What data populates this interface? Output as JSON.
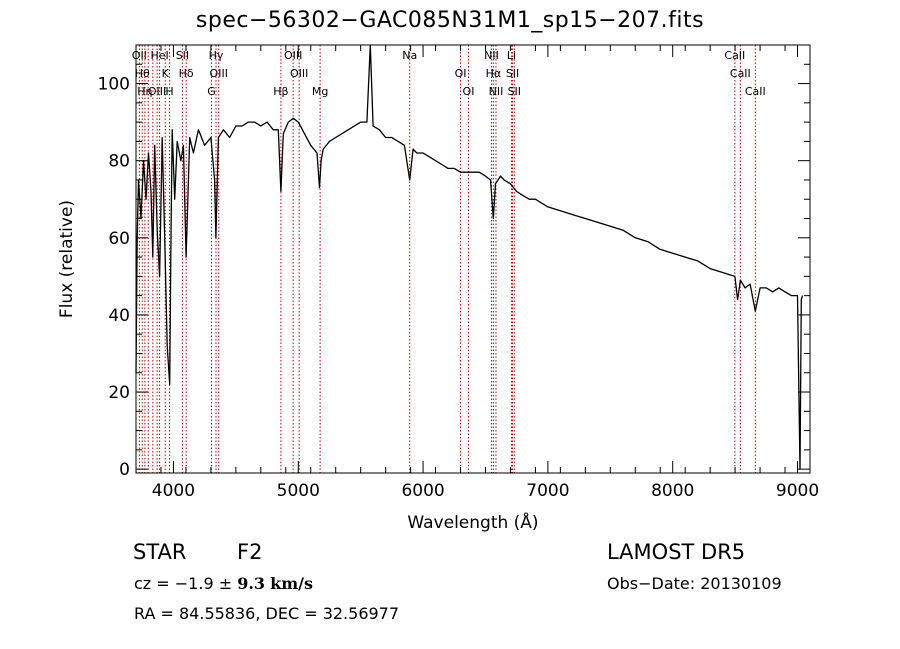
{
  "footer": {
    "class_label": "STAR",
    "subclass": "F2",
    "survey": "LAMOST  DR5",
    "cz_prefix": "cz = −1.9 ±",
    "cz_value": "9.3",
    "cz_unit": "km/s",
    "obs_date": "Obs−Date: 20130109",
    "coords": "RA =  84.55836, DEC =  32.56977"
  },
  "chart_data": {
    "type": "line",
    "title": "spec−56302−GAC085N31M1_sp15−207.fits",
    "xlabel": "Wavelength (Å)",
    "ylabel": "Flux (relative)",
    "xlim": [
      3700,
      9100
    ],
    "ylim": [
      -1,
      110
    ],
    "xticks": [
      4000,
      5000,
      6000,
      7000,
      8000,
      9000
    ],
    "yticks": [
      0,
      20,
      40,
      60,
      80,
      100
    ],
    "grid": false,
    "line_color": "#000000",
    "marker_color": "#cc0000",
    "series": [
      {
        "x": [
          3700,
          3710,
          3720,
          3740,
          3760,
          3780,
          3800,
          3820,
          3835,
          3850,
          3870,
          3889,
          3910,
          3930,
          3950,
          3970,
          3980,
          3990,
          4010,
          4030,
          4060,
          4080,
          4101,
          4130,
          4160,
          4200,
          4250,
          4300,
          4330,
          4340,
          4360,
          4400,
          4450,
          4500,
          4550,
          4600,
          4650,
          4700,
          4750,
          4800,
          4840,
          4861,
          4880,
          4920,
          4960,
          5000,
          5050,
          5100,
          5150,
          5170,
          5183,
          5200,
          5250,
          5300,
          5350,
          5400,
          5450,
          5500,
          5550,
          5577,
          5600,
          5650,
          5700,
          5750,
          5800,
          5850,
          5893,
          5920,
          5950,
          6000,
          6050,
          6100,
          6150,
          6200,
          6250,
          6300,
          6350,
          6400,
          6450,
          6500,
          6540,
          6563,
          6580,
          6620,
          6650,
          6700,
          6750,
          6800,
          6850,
          6900,
          6950,
          7000,
          7100,
          7200,
          7300,
          7400,
          7500,
          7600,
          7700,
          7800,
          7900,
          8000,
          8100,
          8200,
          8300,
          8400,
          8498,
          8520,
          8542,
          8580,
          8620,
          8662,
          8700,
          8750,
          8800,
          8850,
          8900,
          8950,
          9000,
          9020,
          9030,
          9040
        ],
        "y": [
          25,
          60,
          75,
          65,
          80,
          70,
          82,
          72,
          55,
          84,
          62,
          50,
          86,
          60,
          32,
          22,
          58,
          88,
          70,
          85,
          80,
          84,
          55,
          86,
          82,
          88,
          84,
          86,
          75,
          60,
          86,
          88,
          86,
          89,
          89,
          90,
          90,
          89,
          90,
          88,
          88,
          72,
          87,
          90,
          91,
          90,
          87,
          84,
          82,
          73,
          80,
          83,
          85,
          86,
          87,
          88,
          89,
          90,
          90,
          110,
          89,
          88,
          86,
          86,
          85,
          84,
          75,
          83,
          82,
          82,
          81,
          80,
          79,
          78,
          78,
          77,
          77,
          77,
          77,
          76,
          75,
          65,
          74,
          76,
          75,
          74,
          72,
          71,
          70,
          70,
          69,
          68,
          67,
          66,
          65,
          64,
          63,
          62,
          60,
          59,
          57,
          56,
          55,
          54,
          52,
          51,
          50,
          44,
          49,
          47,
          48,
          41,
          47,
          47,
          46,
          47,
          46,
          45,
          45,
          0,
          44,
          45
        ]
      }
    ],
    "lines": [
      {
        "wl": 3727,
        "labels": [
          "OII"
        ]
      },
      {
        "wl": 3750,
        "labels": [
          "Hθ"
        ]
      },
      {
        "wl": 3771,
        "labels": [
          "Hη"
        ]
      },
      {
        "wl": 3798,
        "labels": [
          ""
        ]
      },
      {
        "wl": 3835,
        "labels": [
          ""
        ]
      },
      {
        "wl": 3869,
        "labels": [
          "OIII"
        ]
      },
      {
        "wl": 3889,
        "labels": [
          "HeI"
        ]
      },
      {
        "wl": 3934,
        "labels": [
          "K"
        ]
      },
      {
        "wl": 3969,
        "labels": [
          "H"
        ]
      },
      {
        "wl": 4072,
        "labels": [
          "SII"
        ]
      },
      {
        "wl": 4102,
        "labels": [
          "Hδ"
        ]
      },
      {
        "wl": 4305,
        "labels": [
          "G"
        ]
      },
      {
        "wl": 4341,
        "labels": [
          "Hγ"
        ]
      },
      {
        "wl": 4363,
        "labels": [
          "OIII"
        ]
      },
      {
        "wl": 4861,
        "labels": [
          "Hβ"
        ]
      },
      {
        "wl": 4959,
        "labels": [
          "OIII"
        ]
      },
      {
        "wl": 5007,
        "labels": [
          "OIII"
        ]
      },
      {
        "wl": 5175,
        "labels": [
          "Mg"
        ]
      },
      {
        "wl": 5893,
        "labels": [
          "Na"
        ]
      },
      {
        "wl": 6300,
        "labels": [
          "OI"
        ]
      },
      {
        "wl": 6364,
        "labels": [
          "OI"
        ]
      },
      {
        "wl": 6548,
        "labels": [
          "NII"
        ]
      },
      {
        "wl": 6563,
        "labels": [
          "Hα"
        ]
      },
      {
        "wl": 6584,
        "labels": [
          "NII"
        ]
      },
      {
        "wl": 6708,
        "labels": [
          "Li"
        ]
      },
      {
        "wl": 6717,
        "labels": [
          "SII"
        ]
      },
      {
        "wl": 6731,
        "labels": [
          "SII"
        ]
      },
      {
        "wl": 8498,
        "labels": [
          "CaII"
        ]
      },
      {
        "wl": 8542,
        "labels": [
          "CaII"
        ]
      },
      {
        "wl": 8662,
        "labels": [
          "CaII"
        ]
      }
    ]
  }
}
